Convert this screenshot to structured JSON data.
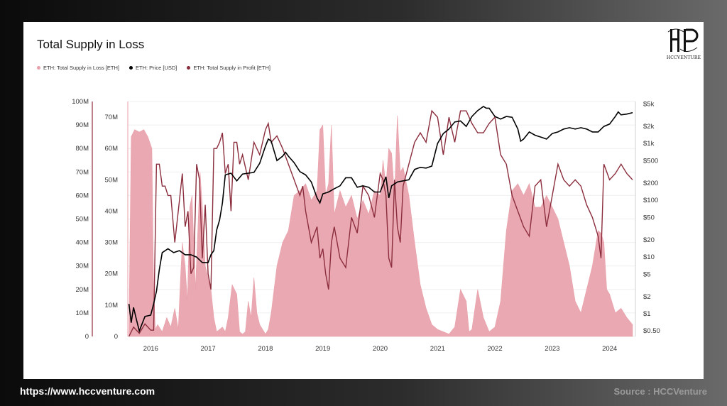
{
  "footer": {
    "url": "https://www.hccventure.com",
    "source": "Source : HCCVenture"
  },
  "logo": {
    "text": "HCCVENTURE"
  },
  "chart_data": {
    "type": "area",
    "title": "Total Supply in Loss",
    "legend_placement": "top-left",
    "grid": true,
    "colors": {
      "loss": "#e8a0aa",
      "profit": "#8b2d3c",
      "price": "#000000"
    },
    "series": [
      {
        "name": "ETH: Total Supply in Loss [ETH]",
        "axis": "left",
        "type": "area"
      },
      {
        "name": "ETH: Price [USD]",
        "axis": "right-log",
        "type": "line"
      },
      {
        "name": "ETH: Total Supply in Profit [ETH]",
        "axis": "middle",
        "type": "line"
      }
    ],
    "x_ticks": [
      "2016",
      "2017",
      "2018",
      "2019",
      "2020",
      "2021",
      "2022",
      "2023",
      "2024"
    ],
    "y_left_ticks": [
      "100M",
      "90M",
      "80M",
      "70M",
      "60M",
      "50M",
      "40M",
      "30M",
      "20M",
      "10M",
      "0"
    ],
    "y_left_lim": [
      0,
      100000000
    ],
    "y_mid_ticks": [
      "70M",
      "60M",
      "50M",
      "40M",
      "30M",
      "20M",
      "10M",
      "0"
    ],
    "y_mid_lim": [
      0,
      75000000
    ],
    "y_right_ticks": [
      "$5k",
      "$2k",
      "$1k",
      "$500",
      "$200",
      "$100",
      "$50",
      "$20",
      "$10",
      "$5",
      "$2",
      "$1",
      "$0.50"
    ],
    "y_right_scale": "log",
    "y_right_lim": [
      0.4,
      5500
    ],
    "x_lim": [
      2015.6,
      2024.45
    ],
    "loss": {
      "x": [
        2015.62,
        2015.66,
        2015.72,
        2015.8,
        2015.88,
        2015.95,
        2016.02,
        2016.05,
        2016.08,
        2016.12,
        2016.2,
        2016.28,
        2016.35,
        2016.42,
        2016.48,
        2016.52,
        2016.55,
        2016.6,
        2016.64,
        2016.68,
        2016.72,
        2016.78,
        2016.82,
        2016.86,
        2016.9,
        2016.95,
        2017.0,
        2017.05,
        2017.1,
        2017.15,
        2017.2,
        2017.25,
        2017.3,
        2017.35,
        2017.42,
        2017.5,
        2017.55,
        2017.6,
        2017.65,
        2017.7,
        2017.75,
        2017.8,
        2017.85,
        2017.9,
        2017.95,
        2018.0,
        2018.05,
        2018.1,
        2018.2,
        2018.3,
        2018.4,
        2018.5,
        2018.6,
        2018.7,
        2018.8,
        2018.9,
        2018.95,
        2019.0,
        2019.05,
        2019.1,
        2019.15,
        2019.2,
        2019.3,
        2019.4,
        2019.5,
        2019.6,
        2019.7,
        2019.8,
        2019.9,
        2020.0,
        2020.05,
        2020.1,
        2020.15,
        2020.2,
        2020.25,
        2020.3,
        2020.35,
        2020.4,
        2020.5,
        2020.6,
        2020.7,
        2020.8,
        2020.9,
        2021.0,
        2021.1,
        2021.2,
        2021.3,
        2021.4,
        2021.5,
        2021.55,
        2021.6,
        2021.7,
        2021.8,
        2021.9,
        2022.0,
        2022.1,
        2022.2,
        2022.3,
        2022.4,
        2022.5,
        2022.6,
        2022.7,
        2022.8,
        2022.9,
        2023.0,
        2023.1,
        2023.2,
        2023.3,
        2023.4,
        2023.5,
        2023.6,
        2023.7,
        2023.8,
        2023.85,
        2023.9,
        2023.95,
        2024.0,
        2024.1,
        2024.2,
        2024.3,
        2024.4
      ],
      "values": [
        2,
        85,
        88,
        87,
        88,
        85,
        80,
        20,
        3,
        5,
        2,
        8,
        4,
        12,
        3,
        25,
        40,
        30,
        15,
        55,
        60,
        20,
        45,
        70,
        55,
        30,
        25,
        20,
        8,
        2,
        3,
        4,
        2,
        8,
        22,
        18,
        2,
        1,
        2,
        15,
        8,
        25,
        10,
        5,
        3,
        1,
        3,
        10,
        30,
        40,
        45,
        60,
        62,
        65,
        58,
        62,
        88,
        90,
        60,
        65,
        90,
        52,
        62,
        55,
        60,
        50,
        58,
        52,
        62,
        60,
        75,
        64,
        80,
        78,
        60,
        94,
        70,
        72,
        60,
        40,
        22,
        12,
        5,
        3,
        2,
        1,
        4,
        20,
        15,
        2,
        3,
        20,
        8,
        2,
        4,
        15,
        45,
        62,
        65,
        60,
        65,
        55,
        55,
        60,
        55,
        50,
        40,
        30,
        15,
        10,
        20,
        30,
        45,
        44,
        40,
        20,
        18,
        10,
        12,
        8,
        5
      ]
    },
    "profit": {
      "x": [
        2015.62,
        2015.7,
        2015.8,
        2015.9,
        2016.0,
        2016.05,
        2016.1,
        2016.15,
        2016.2,
        2016.25,
        2016.3,
        2016.35,
        2016.42,
        2016.48,
        2016.55,
        2016.6,
        2016.65,
        2016.7,
        2016.75,
        2016.8,
        2016.85,
        2016.9,
        2016.95,
        2017.0,
        2017.05,
        2017.1,
        2017.15,
        2017.2,
        2017.25,
        2017.3,
        2017.35,
        2017.4,
        2017.45,
        2017.5,
        2017.55,
        2017.6,
        2017.7,
        2017.8,
        2017.9,
        2018.0,
        2018.05,
        2018.1,
        2018.2,
        2018.3,
        2018.4,
        2018.5,
        2018.6,
        2018.65,
        2018.7,
        2018.8,
        2018.9,
        2018.95,
        2019.0,
        2019.05,
        2019.1,
        2019.15,
        2019.2,
        2019.3,
        2019.4,
        2019.5,
        2019.6,
        2019.7,
        2019.8,
        2019.9,
        2020.0,
        2020.05,
        2020.1,
        2020.15,
        2020.2,
        2020.25,
        2020.3,
        2020.35,
        2020.4,
        2020.5,
        2020.6,
        2020.7,
        2020.8,
        2020.9,
        2021.0,
        2021.1,
        2021.2,
        2021.3,
        2021.4,
        2021.5,
        2021.6,
        2021.7,
        2021.8,
        2021.9,
        2022.0,
        2022.1,
        2022.2,
        2022.3,
        2022.4,
        2022.5,
        2022.6,
        2022.7,
        2022.8,
        2022.9,
        2023.0,
        2023.1,
        2023.2,
        2023.3,
        2023.4,
        2023.5,
        2023.6,
        2023.7,
        2023.8,
        2023.85,
        2023.9,
        2024.0,
        2024.1,
        2024.2,
        2024.3,
        2024.4
      ],
      "values": [
        0,
        3,
        1,
        4,
        2,
        2,
        55,
        55,
        48,
        48,
        45,
        45,
        30,
        40,
        52,
        35,
        40,
        20,
        22,
        55,
        50,
        25,
        42,
        20,
        15,
        60,
        60,
        62,
        65,
        52,
        55,
        40,
        62,
        62,
        55,
        58,
        50,
        62,
        58,
        66,
        68,
        62,
        64,
        60,
        55,
        50,
        45,
        48,
        40,
        30,
        35,
        25,
        28,
        20,
        15,
        30,
        35,
        25,
        22,
        38,
        33,
        48,
        45,
        38,
        52,
        50,
        45,
        25,
        22,
        50,
        35,
        30,
        48,
        55,
        62,
        65,
        62,
        72,
        70,
        58,
        70,
        62,
        72,
        72,
        68,
        65,
        65,
        68,
        70,
        58,
        55,
        45,
        40,
        35,
        32,
        48,
        50,
        35,
        45,
        55,
        50,
        48,
        50,
        48,
        42,
        38,
        32,
        25,
        55,
        50,
        52,
        55,
        52,
        50
      ]
    },
    "price": {
      "x": [
        2015.62,
        2015.66,
        2015.7,
        2015.75,
        2015.8,
        2015.9,
        2016.0,
        2016.05,
        2016.1,
        2016.15,
        2016.2,
        2016.3,
        2016.4,
        2016.5,
        2016.6,
        2016.7,
        2016.8,
        2016.9,
        2017.0,
        2017.05,
        2017.1,
        2017.15,
        2017.2,
        2017.25,
        2017.3,
        2017.4,
        2017.5,
        2017.6,
        2017.7,
        2017.8,
        2017.9,
        2018.0,
        2018.05,
        2018.1,
        2018.2,
        2018.3,
        2018.35,
        2018.4,
        2018.5,
        2018.6,
        2018.7,
        2018.8,
        2018.9,
        2018.95,
        2019.0,
        2019.1,
        2019.2,
        2019.3,
        2019.4,
        2019.5,
        2019.6,
        2019.7,
        2019.8,
        2019.9,
        2020.0,
        2020.1,
        2020.15,
        2020.2,
        2020.3,
        2020.4,
        2020.5,
        2020.6,
        2020.7,
        2020.8,
        2020.9,
        2021.0,
        2021.1,
        2021.2,
        2021.3,
        2021.4,
        2021.5,
        2021.6,
        2021.7,
        2021.8,
        2021.85,
        2021.9,
        2022.0,
        2022.1,
        2022.2,
        2022.3,
        2022.4,
        2022.45,
        2022.5,
        2022.6,
        2022.7,
        2022.8,
        2022.9,
        2023.0,
        2023.1,
        2023.2,
        2023.3,
        2023.4,
        2023.5,
        2023.6,
        2023.7,
        2023.8,
        2023.9,
        2024.0,
        2024.1,
        2024.15,
        2024.2,
        2024.3,
        2024.4
      ],
      "values": [
        1.5,
        0.7,
        1.3,
        0.8,
        0.5,
        0.9,
        0.95,
        1.5,
        2.5,
        6,
        12,
        14,
        12,
        13,
        11,
        11,
        10,
        8,
        8,
        11,
        13,
        30,
        45,
        90,
        280,
        300,
        220,
        290,
        300,
        310,
        450,
        900,
        1200,
        1100,
        500,
        600,
        700,
        600,
        460,
        320,
        280,
        210,
        110,
        90,
        130,
        140,
        160,
        180,
        250,
        250,
        170,
        180,
        170,
        140,
        140,
        260,
        110,
        180,
        210,
        220,
        230,
        350,
        380,
        370,
        400,
        1000,
        1500,
        1800,
        2400,
        2500,
        2000,
        3000,
        3800,
        4500,
        4200,
        4200,
        3000,
        2700,
        3000,
        2900,
        1800,
        1100,
        1200,
        1600,
        1400,
        1300,
        1200,
        1500,
        1600,
        1800,
        1900,
        1800,
        1900,
        1800,
        1600,
        1600,
        2000,
        2200,
        3000,
        3600,
        3200,
        3300,
        3500
      ]
    }
  }
}
